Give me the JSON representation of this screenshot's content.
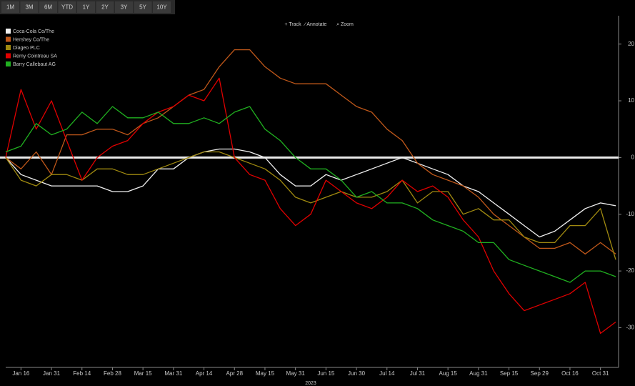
{
  "toolbar": {
    "ranges": [
      "1M",
      "3M",
      "6M",
      "YTD",
      "1Y",
      "2Y",
      "3Y",
      "5Y",
      "10Y"
    ],
    "tools": [
      "+ Track",
      "∕ Annotate",
      "⌕ Zoom"
    ]
  },
  "chart_data": {
    "type": "line",
    "x_label": "2023",
    "categories": [
      null,
      "Jan 16",
      null,
      "Jan 31",
      null,
      "Feb 14",
      null,
      "Feb 28",
      null,
      "Mar 15",
      null,
      "Mar 31",
      null,
      "Apr 14",
      null,
      "Apr 28",
      null,
      "May 15",
      null,
      "May 31",
      null,
      "Jun 15",
      null,
      "Jun 30",
      null,
      "Jul 14",
      null,
      "Jul 31",
      null,
      "Aug 15",
      null,
      "Aug 31",
      null,
      "Sep 15",
      null,
      "Sep 29",
      null,
      "Oct 16",
      null,
      "Oct 31",
      null
    ],
    "series": [
      {
        "name": "Coca-Cola Co/The",
        "color": "#f0f0f0",
        "values": [
          0,
          -3,
          -4,
          -5,
          -5,
          -5,
          -5,
          -6,
          -6,
          -5,
          -2,
          -2,
          0,
          1,
          1.5,
          1.5,
          1,
          0,
          -3,
          -5,
          -5,
          -3,
          -4,
          -3,
          -2,
          -1,
          0,
          -1,
          -2,
          -3,
          -5,
          -6,
          -8,
          -10,
          -12,
          -14,
          -13,
          -11,
          -9,
          -8,
          -8.5
        ]
      },
      {
        "name": "Hershey Co/The",
        "color": "#c0581a",
        "values": [
          0,
          -2,
          1,
          -3,
          4,
          4,
          5,
          5,
          4,
          6,
          7,
          9,
          11,
          12,
          16,
          19,
          19,
          16,
          14,
          13,
          13,
          13,
          11,
          9,
          8,
          5,
          3,
          -1,
          -3,
          -4,
          -5,
          -7,
          -10,
          -12,
          -14,
          -16,
          -16,
          -15,
          -17,
          -15,
          -17
        ]
      },
      {
        "name": "Diageo PLC",
        "color": "#a08a10",
        "values": [
          0,
          -4,
          -5,
          -3,
          -3,
          -4,
          -2,
          -2,
          -3,
          -3,
          -2,
          -1,
          0,
          1,
          1,
          0,
          -1,
          -2,
          -4,
          -7,
          -8,
          -7,
          -6,
          -7,
          -7,
          -6,
          -4,
          -8,
          -6,
          -6,
          -10,
          -9,
          -11,
          -11,
          -14,
          -15,
          -15,
          -12,
          -12,
          -9,
          -18
        ]
      },
      {
        "name": "Remy Cointreau SA",
        "color": "#e00000",
        "values": [
          0,
          12,
          5,
          10,
          3,
          -4,
          0,
          2,
          3,
          6,
          8,
          9,
          11,
          10,
          14,
          0,
          -3,
          -4,
          -9,
          -12,
          -10,
          -4,
          -6,
          -8,
          -9,
          -7,
          -4,
          -6,
          -5,
          -7,
          -11,
          -14,
          -20,
          -24,
          -27,
          -26,
          -25,
          -24,
          -22,
          -31,
          -29
        ]
      },
      {
        "name": "Barry Callebaut AG",
        "color": "#20b020",
        "values": [
          1,
          2,
          6,
          4,
          5,
          8,
          6,
          9,
          7,
          7,
          8,
          6,
          6,
          7,
          6,
          8,
          9,
          5,
          3,
          0,
          -2,
          -2,
          -4,
          -7,
          -6,
          -8,
          -8,
          -9,
          -11,
          -12,
          -13,
          -15,
          -15,
          -18,
          -19,
          -20,
          -21,
          -22,
          -20,
          -20,
          -21
        ]
      }
    ],
    "ylim": [
      -37,
      25
    ],
    "yticks": [
      20,
      10,
      0,
      -10,
      -20,
      -30
    ],
    "grid": false,
    "legend": "top-left"
  }
}
